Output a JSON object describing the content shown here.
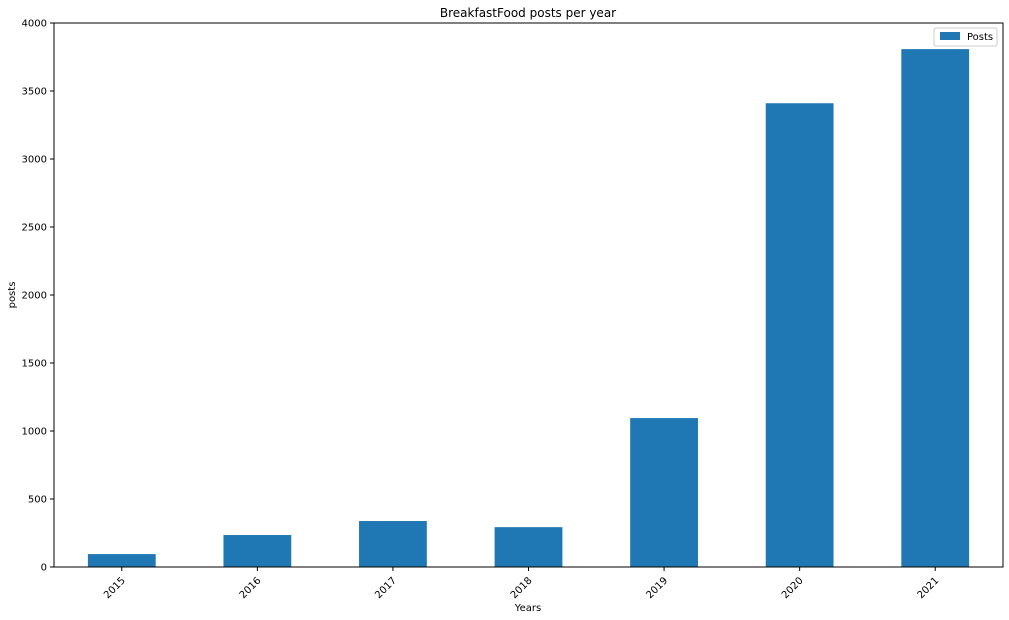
{
  "chart_data": {
    "type": "bar",
    "title": "BreakfastFood posts per year",
    "xlabel": "Years",
    "ylabel": "posts",
    "categories": [
      "2015",
      "2016",
      "2017",
      "2018",
      "2019",
      "2020",
      "2021"
    ],
    "series": [
      {
        "name": "Posts",
        "values": [
          95,
          235,
          338,
          293,
          1095,
          3410,
          3808
        ],
        "color": "#1f77b4"
      }
    ],
    "ylim": [
      0,
      4000
    ],
    "yticks": [
      0,
      500,
      1000,
      1500,
      2000,
      2500,
      3000,
      3500,
      4000
    ],
    "grid": false,
    "legend_position": "top-right",
    "xtick_rotation": 45
  }
}
